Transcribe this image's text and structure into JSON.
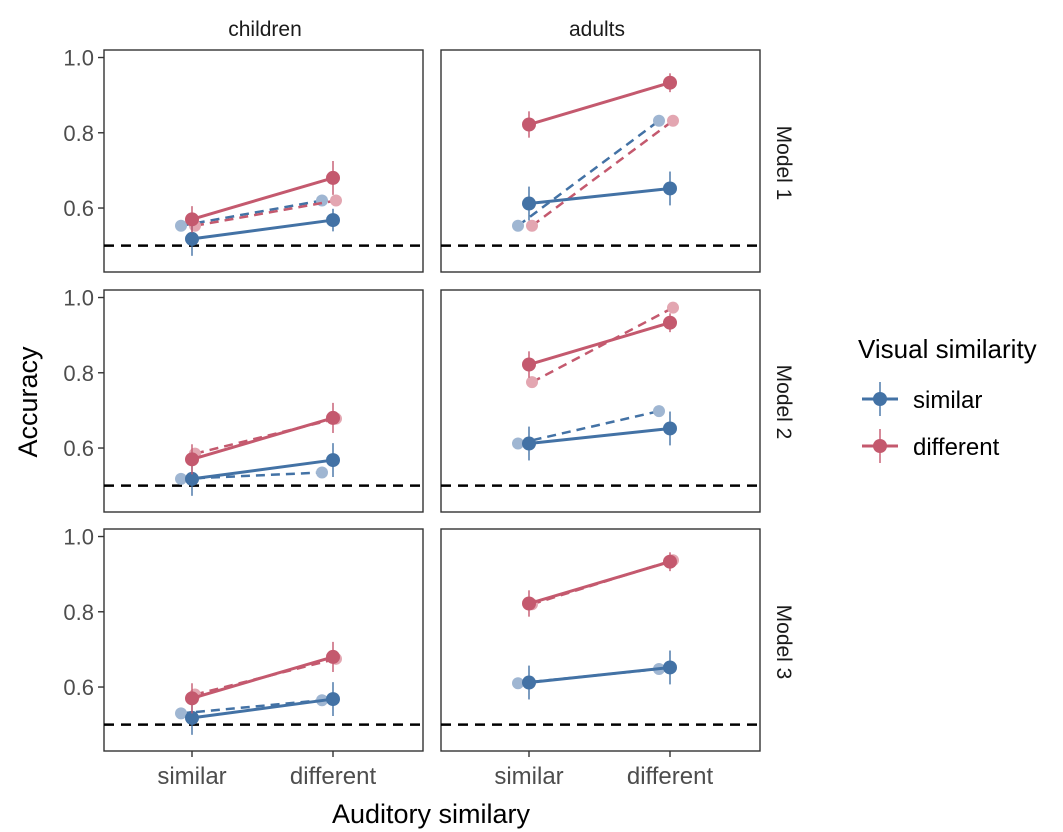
{
  "chart_data": {
    "type": "line",
    "xlabel": "Auditory similary",
    "ylabel": "Accuracy",
    "categories": [
      "similar",
      "different"
    ],
    "ylim": [
      0.43,
      1.02
    ],
    "yticks": [
      "0.6",
      "0.8",
      "1.0"
    ],
    "ytick_values": [
      0.6,
      0.8,
      1.0
    ],
    "reference_line": 0.5,
    "columns": [
      "children",
      "adults"
    ],
    "rows": [
      "Model 1",
      "Model 2",
      "Model 3"
    ],
    "legend": {
      "title": "Visual similarity",
      "items": [
        {
          "label": "similar",
          "color": "#4372a5"
        },
        {
          "label": "different",
          "color": "#c4596e"
        }
      ]
    },
    "colors": {
      "similar": "#4372a5",
      "different": "#c4596e",
      "similar_light": "#9fb6d2",
      "different_light": "#e3a6b1"
    },
    "grid": false,
    "legend_position": "right",
    "panels": [
      {
        "row": 0,
        "col": 0,
        "observed": {
          "similar": [
            0.518,
            0.568
          ],
          "different": [
            0.57,
            0.68
          ]
        },
        "observed_err": {
          "similar": [
            0.045,
            0.03
          ],
          "different": [
            0.035,
            0.045
          ]
        },
        "model": {
          "similar": [
            0.553,
            0.62
          ],
          "different": [
            0.553,
            0.62
          ]
        }
      },
      {
        "row": 0,
        "col": 1,
        "observed": {
          "similar": [
            0.612,
            0.652
          ],
          "different": [
            0.822,
            0.933
          ]
        },
        "observed_err": {
          "similar": [
            0.045,
            0.045
          ],
          "different": [
            0.035,
            0.025
          ]
        },
        "model": {
          "similar": [
            0.553,
            0.832
          ],
          "different": [
            0.553,
            0.832
          ]
        }
      },
      {
        "row": 1,
        "col": 0,
        "observed": {
          "similar": [
            0.518,
            0.568
          ],
          "different": [
            0.57,
            0.68
          ]
        },
        "observed_err": {
          "similar": [
            0.045,
            0.045
          ],
          "different": [
            0.04,
            0.04
          ]
        },
        "model": {
          "similar": [
            0.518,
            0.535
          ],
          "different": [
            0.585,
            0.678
          ]
        }
      },
      {
        "row": 1,
        "col": 1,
        "observed": {
          "similar": [
            0.612,
            0.652
          ],
          "different": [
            0.822,
            0.933
          ]
        },
        "observed_err": {
          "similar": [
            0.045,
            0.045
          ],
          "different": [
            0.035,
            0.025
          ]
        },
        "model": {
          "similar": [
            0.612,
            0.698
          ],
          "different": [
            0.775,
            0.973
          ]
        }
      },
      {
        "row": 2,
        "col": 0,
        "observed": {
          "similar": [
            0.518,
            0.568
          ],
          "different": [
            0.57,
            0.68
          ]
        },
        "observed_err": {
          "similar": [
            0.045,
            0.045
          ],
          "different": [
            0.04,
            0.04
          ]
        },
        "model": {
          "similar": [
            0.53,
            0.565
          ],
          "different": [
            0.58,
            0.675
          ]
        }
      },
      {
        "row": 2,
        "col": 1,
        "observed": {
          "similar": [
            0.612,
            0.652
          ],
          "different": [
            0.822,
            0.933
          ]
        },
        "observed_err": {
          "similar": [
            0.045,
            0.045
          ],
          "different": [
            0.035,
            0.025
          ]
        },
        "model": {
          "similar": [
            0.61,
            0.648
          ],
          "different": [
            0.82,
            0.937
          ]
        }
      }
    ]
  }
}
